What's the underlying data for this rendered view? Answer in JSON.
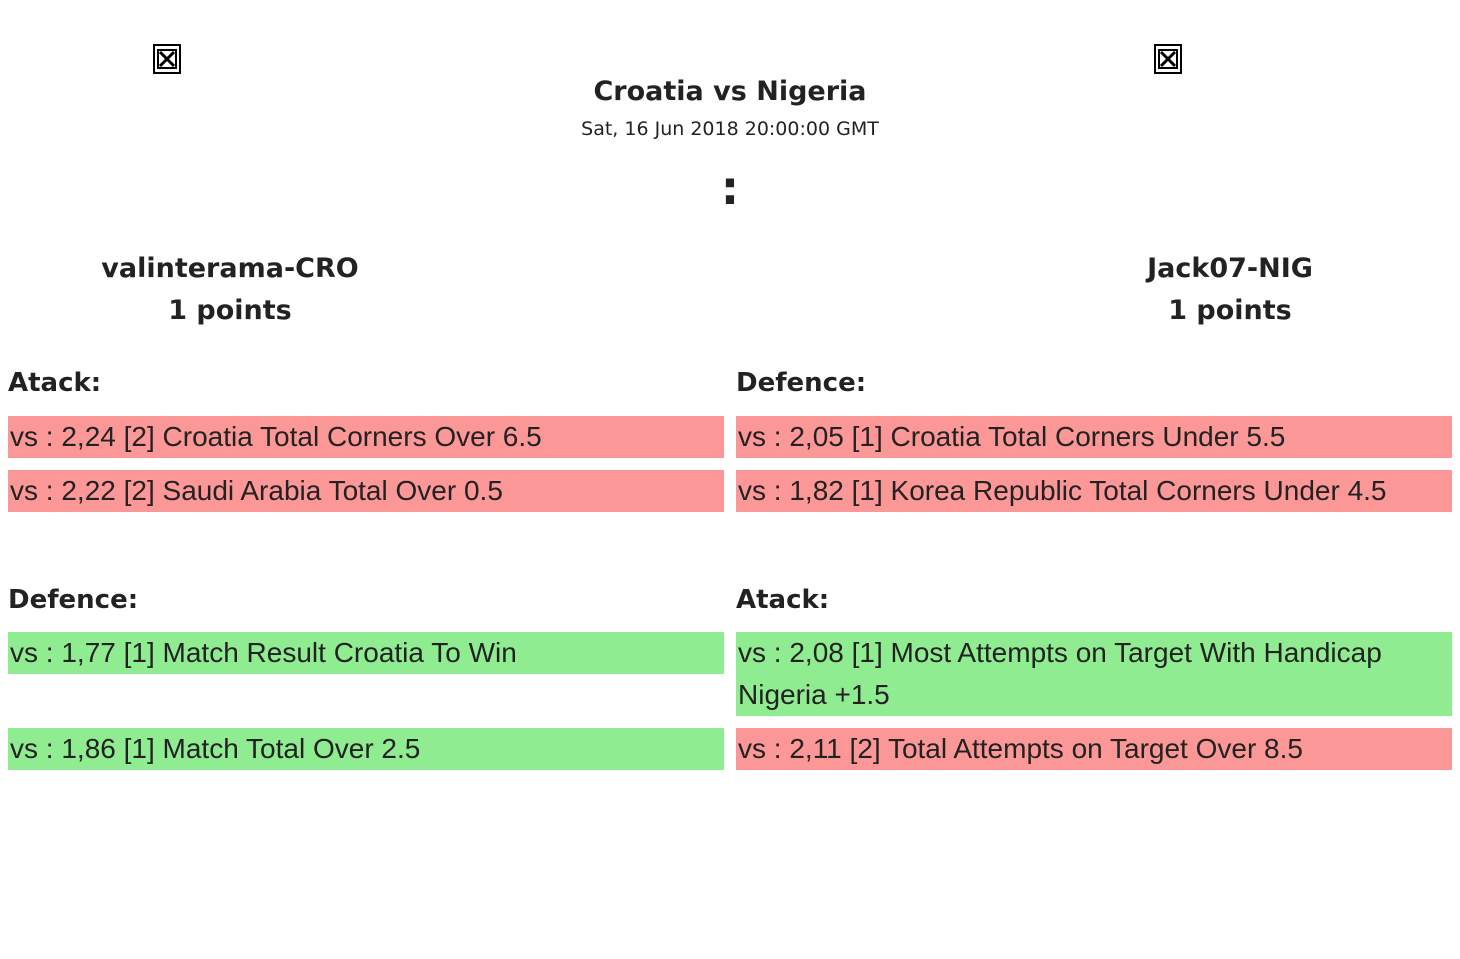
{
  "match": {
    "title": "Croatia vs Nigeria",
    "date": "Sat, 16 Jun 2018 20:00:00 GMT",
    "score": ":"
  },
  "players": {
    "left": {
      "name": "valinterama-CRO",
      "points": "1 points"
    },
    "right": {
      "name": "Jack07-NIG",
      "points": "1 points"
    }
  },
  "left": {
    "section1": {
      "label": "Atack:",
      "bets": [
        {
          "text": "vs : 2,24 [2] Croatia Total Corners Over 6.5",
          "status": "lost"
        },
        {
          "text": "vs : 2,22 [2] Saudi Arabia Total Over 0.5",
          "status": "lost"
        }
      ]
    },
    "section2": {
      "label": "Defence:",
      "bets": [
        {
          "text": "vs : 1,77 [1] Match Result Croatia To Win",
          "status": "won"
        },
        {
          "text": "vs : 1,86 [1] Match Total Over 2.5",
          "status": "won"
        }
      ]
    }
  },
  "right": {
    "section1": {
      "label": "Defence:",
      "bets": [
        {
          "text": "vs : 2,05 [1] Croatia Total Corners Under 5.5",
          "status": "lost"
        },
        {
          "text": "vs : 1,82 [1] Korea Republic Total Corners Under 4.5",
          "status": "lost"
        }
      ]
    },
    "section2": {
      "label": "Atack:",
      "bets": [
        {
          "text": "vs : 2,08 [1] Most Attempts on Target With Handicap Nigeria +1.5",
          "status": "won"
        },
        {
          "text": "vs : 2,11 [2] Total Attempts on Target Over 8.5",
          "status": "lost"
        }
      ]
    }
  },
  "colors": {
    "lost": "#fc9797",
    "won": "#90ec90"
  },
  "icons": {
    "left_flag": "broken-image-icon",
    "right_flag": "broken-image-icon"
  }
}
